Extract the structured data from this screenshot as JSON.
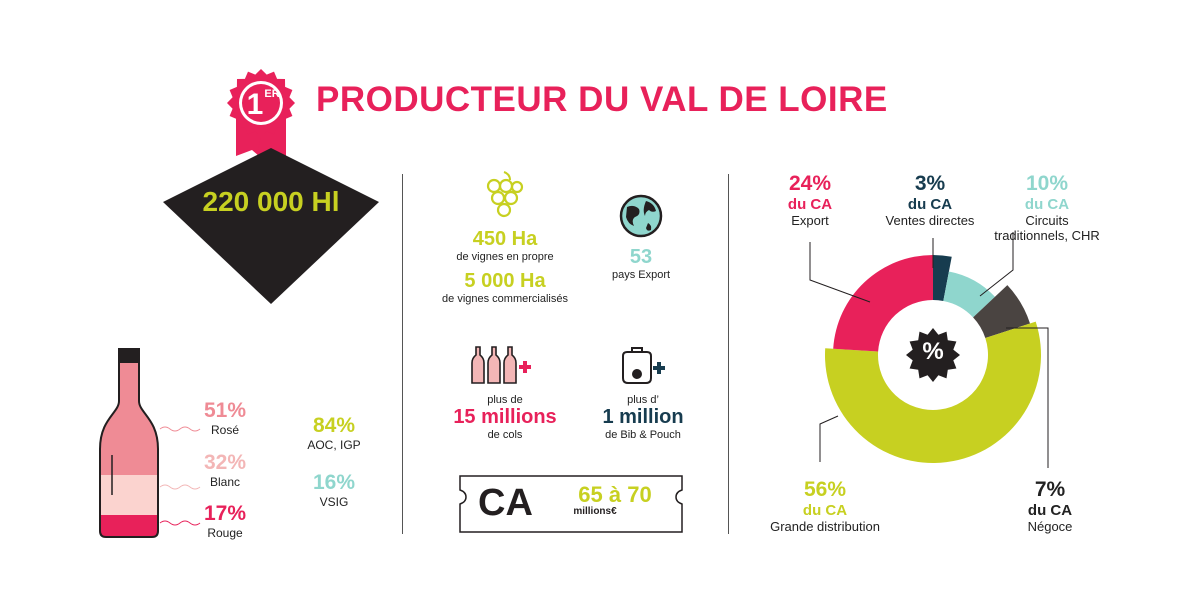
{
  "header": {
    "rank": "1",
    "rank_suffix": "ER",
    "title": "PRODUCTEUR DU VAL DE LOIRE"
  },
  "volume": "220 000 Hl",
  "bottle_breakdown": [
    {
      "pct": "51%",
      "label": "Rosé",
      "color": "#ef8b95"
    },
    {
      "pct": "32%",
      "label": "Blanc",
      "color": "#f3b6b6"
    },
    {
      "pct": "17%",
      "label": "Rouge",
      "color": "#e8215a"
    }
  ],
  "appellation": [
    {
      "pct": "84%",
      "label": "AOC, IGP",
      "color": "#c7d021"
    },
    {
      "pct": "16%",
      "label": "VSIG",
      "color": "#8fd6cd"
    }
  ],
  "vineyards": {
    "owned_value": "450 Ha",
    "owned_label": "de vignes en propre",
    "sold_value": "5 000 Ha",
    "sold_label": "de vignes commercialisés"
  },
  "export": {
    "value": "53",
    "label": "pays Export"
  },
  "bottles": {
    "prefix": "plus de",
    "value": "15 millions",
    "label": "de cols"
  },
  "bib": {
    "prefix": "plus d’",
    "value": "1 million",
    "label": "de Bib & Pouch"
  },
  "revenue": {
    "label": "CA",
    "value": "65 à 70",
    "unit": "millions€"
  },
  "chart_data": {
    "type": "pie",
    "center_label": "%",
    "slices": [
      {
        "name": "Ventes directes",
        "value": 3,
        "pct": "3%",
        "ca": "du CA",
        "color": "#173c4f"
      },
      {
        "name": "Circuits traditionnels, CHR",
        "value": 10,
        "pct": "10%",
        "ca": "du CA",
        "color": "#8fd6cd"
      },
      {
        "name": "Négoce",
        "value": 7,
        "pct": "7%",
        "ca": "du CA",
        "color": "#4a4441"
      },
      {
        "name": "Grande distribution",
        "value": 56,
        "pct": "56%",
        "ca": "du CA",
        "color": "#c7d021"
      },
      {
        "name": "Export",
        "value": 24,
        "pct": "24%",
        "ca": "du CA",
        "color": "#e8215a"
      }
    ]
  }
}
